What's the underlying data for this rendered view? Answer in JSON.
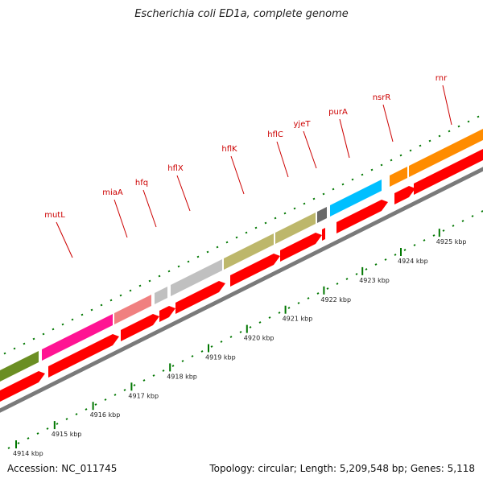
{
  "title": "Escherichia coli ED1a, complete genome",
  "footer": {
    "accession": "Accession: NC_011745",
    "stats": "Topology: circular; Length: 5,209,548 bp; Genes: 5,118"
  },
  "colors": {
    "backbone": "#7a7a7a",
    "cds_arrow": "#ff0000",
    "tick": "#007700",
    "label": "#cc0000"
  },
  "genes": [
    {
      "name": "",
      "color": "#6b8e23"
    },
    {
      "name": "mutL",
      "color": "#ff1493"
    },
    {
      "name": "miaA",
      "color": "#f08080"
    },
    {
      "name": "hfq",
      "color": "#c0c0c0"
    },
    {
      "name": "hflX",
      "color": "#c0c0c0"
    },
    {
      "name": "hflK",
      "color": "#bdb76b"
    },
    {
      "name": "hflC",
      "color": "#bdb76b"
    },
    {
      "name": "yjeT",
      "color": "#696969"
    },
    {
      "name": "purA",
      "color": "#00bfff"
    },
    {
      "name": "nsrR",
      "color": "#ff8c00"
    },
    {
      "name": "rnr",
      "color": "#ff8c00"
    }
  ],
  "kbp_labels": [
    "4914 kbp",
    "4915 kbp",
    "4916 kbp",
    "4917 kbp",
    "4918 kbp",
    "4919 kbp",
    "4920 kbp",
    "4921 kbp",
    "4922 kbp",
    "4923 kbp",
    "4924 kbp",
    "4925 kbp"
  ]
}
